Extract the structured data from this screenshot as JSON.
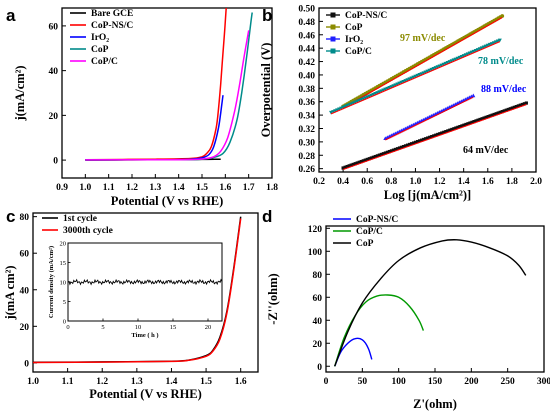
{
  "chart_data": [
    {
      "panel": "a",
      "type": "line",
      "xlabel": "Potential (V vs RHE)",
      "ylabel": "j(mA/cm²)",
      "xlim": [
        0.9,
        1.8
      ],
      "ylim": [
        -8,
        68
      ],
      "xticks": [
        0.9,
        1.0,
        1.1,
        1.2,
        1.3,
        1.4,
        1.5,
        1.6,
        1.7,
        1.8
      ],
      "yticks": [
        0,
        20,
        40,
        60
      ],
      "legend_position": "top-left",
      "series": [
        {
          "name": "Bare GCE",
          "color": "#000000",
          "points": [
            [
              1.0,
              0
            ],
            [
              1.2,
              0.1
            ],
            [
              1.4,
              0.2
            ],
            [
              1.5,
              0.3
            ],
            [
              1.58,
              0.4
            ]
          ]
        },
        {
          "name": "CoP-NS/C",
          "color": "#ff0000",
          "points": [
            [
              1.0,
              0.2
            ],
            [
              1.3,
              0.4
            ],
            [
              1.45,
              0.7
            ],
            [
              1.5,
              1.5
            ],
            [
              1.52,
              3
            ],
            [
              1.54,
              6
            ],
            [
              1.56,
              14
            ],
            [
              1.57,
              22
            ],
            [
              1.58,
              34
            ],
            [
              1.59,
              48
            ],
            [
              1.6,
              62
            ],
            [
              1.605,
              70
            ]
          ]
        },
        {
          "name": "IrO₂",
          "color": "#0000ff",
          "points": [
            [
              1.0,
              0.1
            ],
            [
              1.35,
              0.2
            ],
            [
              1.45,
              0.4
            ],
            [
              1.5,
              1
            ],
            [
              1.53,
              2.5
            ],
            [
              1.55,
              6
            ],
            [
              1.57,
              14
            ],
            [
              1.58,
              21
            ],
            [
              1.59,
              29
            ]
          ]
        },
        {
          "name": "CoP",
          "color": "#008b8b",
          "points": [
            [
              1.0,
              0.1
            ],
            [
              1.4,
              0.2
            ],
            [
              1.5,
              0.4
            ],
            [
              1.55,
              1.2
            ],
            [
              1.59,
              3
            ],
            [
              1.62,
              8
            ],
            [
              1.65,
              18
            ],
            [
              1.67,
              30
            ],
            [
              1.69,
              45
            ],
            [
              1.71,
              62
            ],
            [
              1.715,
              66
            ]
          ]
        },
        {
          "name": "CoP/C",
          "color": "#ff00ff",
          "points": [
            [
              1.0,
              0.1
            ],
            [
              1.4,
              0.2
            ],
            [
              1.5,
              0.5
            ],
            [
              1.55,
              1.5
            ],
            [
              1.58,
              4
            ],
            [
              1.61,
              10
            ],
            [
              1.64,
              22
            ],
            [
              1.66,
              33
            ],
            [
              1.68,
              46
            ],
            [
              1.7,
              58
            ]
          ]
        }
      ]
    },
    {
      "panel": "b",
      "type": "scatter",
      "xlabel": "Log [j(mA/cm²)]",
      "ylabel": "Overpotential (V)",
      "xlim": [
        0.2,
        2.0
      ],
      "ylim": [
        0.255,
        0.5
      ],
      "xticks": [
        0.2,
        0.4,
        0.6,
        0.8,
        1.0,
        1.2,
        1.4,
        1.6,
        1.8,
        2.0
      ],
      "yticks": [
        0.26,
        0.28,
        0.3,
        0.32,
        0.34,
        0.36,
        0.38,
        0.4,
        0.42,
        0.44,
        0.46,
        0.48,
        0.5
      ],
      "legend_position": "top-left",
      "series": [
        {
          "name": "CoP-NS/C",
          "color": "#111111",
          "x_range": [
            0.4,
            1.92
          ],
          "y_range": [
            0.261,
            0.358
          ],
          "tafel_slope": "64 mV/dec"
        },
        {
          "name": "CoP",
          "color": "#8b8b00",
          "x_range": [
            0.4,
            1.72
          ],
          "y_range": [
            0.353,
            0.488
          ],
          "tafel_slope": "97 mV/dec"
        },
        {
          "name": "IrO₂",
          "color": "#2020ff",
          "x_range": [
            0.75,
            1.48
          ],
          "y_range": [
            0.305,
            0.369
          ],
          "tafel_slope": "88 mV/dec"
        },
        {
          "name": "CoP/C",
          "color": "#008b8b",
          "x_range": [
            0.3,
            1.7
          ],
          "y_range": [
            0.344,
            0.452
          ],
          "tafel_slope": "78 mV/dec"
        }
      ],
      "annotations": [
        {
          "text": "97 mV/dec",
          "color": "#8b8b00"
        },
        {
          "text": "78 mV/dec",
          "color": "#008b8b"
        },
        {
          "text": "88 mV/dec",
          "color": "#0000ff"
        },
        {
          "text": "64 mV/dec",
          "color": "#000000"
        }
      ]
    },
    {
      "panel": "c",
      "type": "line",
      "xlabel": "Potential (V vs RHE)",
      "ylabel": "j(mA cm²)",
      "xlim": [
        1.0,
        1.65
      ],
      "ylim": [
        -5,
        82
      ],
      "xticks": [
        1.0,
        1.1,
        1.2,
        1.3,
        1.4,
        1.5,
        1.6
      ],
      "yticks": [
        0,
        20,
        40,
        60,
        80
      ],
      "legend_position": "top-left",
      "series": [
        {
          "name": "1st cycle",
          "color": "#000000",
          "points": [
            [
              1.0,
              0.3
            ],
            [
              1.2,
              0.5
            ],
            [
              1.4,
              0.9
            ],
            [
              1.45,
              1.5
            ],
            [
              1.5,
              4
            ],
            [
              1.52,
              7
            ],
            [
              1.54,
              14
            ],
            [
              1.56,
              28
            ],
            [
              1.58,
              52
            ],
            [
              1.6,
              80
            ]
          ]
        },
        {
          "name": "3000th cycle",
          "color": "#ff0000",
          "points": [
            [
              1.0,
              0.2
            ],
            [
              1.2,
              0.4
            ],
            [
              1.4,
              0.8
            ],
            [
              1.45,
              1.4
            ],
            [
              1.5,
              3.6
            ],
            [
              1.52,
              6.5
            ],
            [
              1.54,
              13
            ],
            [
              1.56,
              27
            ],
            [
              1.58,
              51
            ],
            [
              1.6,
              79
            ]
          ]
        }
      ],
      "inset": {
        "type": "line",
        "xlabel": "Time ( h )",
        "ylabel": "Current density (mA/cm²)",
        "xlim": [
          0,
          22
        ],
        "ylim": [
          0,
          20
        ],
        "xticks": [
          0,
          5,
          10,
          15,
          20
        ],
        "yticks": [
          0,
          5,
          10,
          15,
          20
        ],
        "series": [
          {
            "color": "#000000",
            "value": 10,
            "x_range": [
              0,
              22
            ]
          }
        ]
      }
    },
    {
      "panel": "d",
      "type": "line",
      "xlabel": "Z'(ohm)",
      "ylabel": "-Z''(ohm)",
      "xlim": [
        0,
        300
      ],
      "ylim": [
        -5,
        122
      ],
      "xticks": [
        0,
        50,
        100,
        150,
        200,
        250,
        300
      ],
      "yticks": [
        0,
        20,
        40,
        60,
        80,
        100,
        120
      ],
      "legend_position": "top-left",
      "series": [
        {
          "name": "CoP-NS/C",
          "color": "#0000ff",
          "points": [
            [
              12,
              0
            ],
            [
              20,
              12
            ],
            [
              30,
              20
            ],
            [
              40,
              24
            ],
            [
              50,
              23
            ],
            [
              58,
              16
            ],
            [
              63,
              6
            ]
          ]
        },
        {
          "name": "CoP/C",
          "color": "#009900",
          "points": [
            [
              12,
              0
            ],
            [
              25,
              25
            ],
            [
              40,
              44
            ],
            [
              55,
              56
            ],
            [
              70,
              61
            ],
            [
              85,
              62
            ],
            [
              100,
              60
            ],
            [
              115,
              52
            ],
            [
              128,
              40
            ],
            [
              134,
              31
            ]
          ]
        },
        {
          "name": "CoP",
          "color": "#000000",
          "points": [
            [
              12,
              0
            ],
            [
              30,
              30
            ],
            [
              50,
              55
            ],
            [
              75,
              76
            ],
            [
              100,
              92
            ],
            [
              130,
              103
            ],
            [
              160,
              109
            ],
            [
              180,
              110
            ],
            [
              200,
              108
            ],
            [
              225,
              103
            ],
            [
              250,
              96
            ],
            [
              265,
              88
            ],
            [
              275,
              79
            ]
          ]
        }
      ]
    }
  ]
}
